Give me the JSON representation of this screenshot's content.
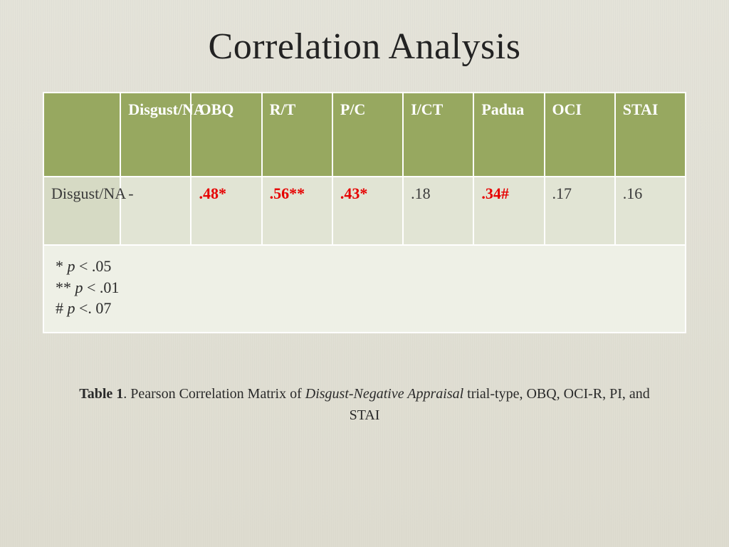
{
  "title": "Correlation Analysis",
  "table": {
    "type": "table",
    "header_bg": "#97a860",
    "header_fg": "#ffffff",
    "body_bg": "#e1e4d4",
    "rowlabel_bg": "#d6dac4",
    "border_color": "#ffffff",
    "sig_color": "#e60000",
    "columns": [
      "",
      "Disgust/NA",
      "OBQ",
      "R/T",
      "P/C",
      "I/CT",
      "Padua",
      "OCI",
      "STAI"
    ],
    "rows": [
      {
        "label": "Disgust/NA",
        "cells": [
          {
            "text": "-",
            "sig": false
          },
          {
            "text": ".48*",
            "sig": true
          },
          {
            "text": ".56**",
            "sig": true
          },
          {
            "text": ".43*",
            "sig": true
          },
          {
            "text": ".18",
            "sig": false
          },
          {
            "text": ".34#",
            "sig": true
          },
          {
            "text": ".17",
            "sig": false
          },
          {
            "text": ".16",
            "sig": false
          }
        ]
      }
    ],
    "footnotes": [
      {
        "marker": "*",
        "text": "p < .05"
      },
      {
        "marker": "**",
        "text": "p < .01"
      },
      {
        "marker": "#",
        "text": "p <. 07"
      }
    ]
  },
  "caption": {
    "label": "Table 1",
    "before_ital": ". Pearson Correlation Matrix of ",
    "ital": "Disgust-Negative Appraisal",
    "after_ital": " trial-type, OBQ, OCI-R, PI, and STAI"
  }
}
